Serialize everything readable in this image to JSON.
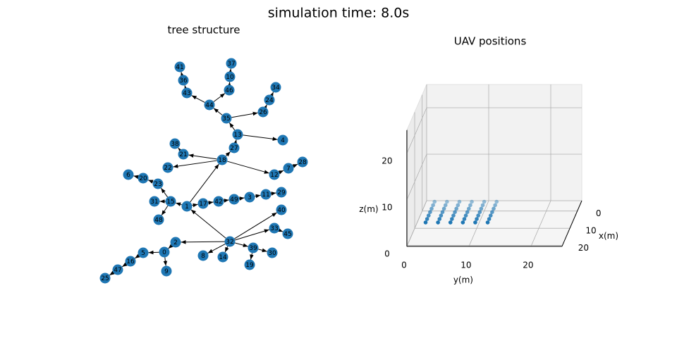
{
  "title": "simulation time: 8.0s",
  "tree": {
    "title": "tree structure",
    "nodes": [
      "0",
      "1",
      "2",
      "3",
      "4",
      "5",
      "6",
      "7",
      "8",
      "9",
      "10",
      "11",
      "12",
      "13",
      "14",
      "15",
      "16",
      "17",
      "18",
      "19",
      "20",
      "21",
      "22",
      "23",
      "24",
      "25",
      "26",
      "27",
      "28",
      "29",
      "30",
      "31",
      "32",
      "33",
      "34",
      "35",
      "36",
      "37",
      "38",
      "39",
      "40",
      "41",
      "42",
      "43",
      "44",
      "45",
      "46",
      "47",
      "48",
      "49"
    ],
    "edges": [
      [
        "32",
        "2"
      ],
      [
        "2",
        "0"
      ],
      [
        "0",
        "5"
      ],
      [
        "0",
        "9"
      ],
      [
        "5",
        "16"
      ],
      [
        "16",
        "47"
      ],
      [
        "47",
        "25"
      ],
      [
        "32",
        "8"
      ],
      [
        "32",
        "14"
      ],
      [
        "32",
        "39"
      ],
      [
        "39",
        "19"
      ],
      [
        "39",
        "30"
      ],
      [
        "32",
        "33"
      ],
      [
        "33",
        "45"
      ],
      [
        "32",
        "40"
      ],
      [
        "32",
        "1"
      ],
      [
        "1",
        "15"
      ],
      [
        "15",
        "31"
      ],
      [
        "15",
        "48"
      ],
      [
        "15",
        "23"
      ],
      [
        "23",
        "20"
      ],
      [
        "20",
        "6"
      ],
      [
        "1",
        "17"
      ],
      [
        "17",
        "42"
      ],
      [
        "42",
        "49"
      ],
      [
        "49",
        "3"
      ],
      [
        "3",
        "11"
      ],
      [
        "11",
        "29"
      ],
      [
        "1",
        "18"
      ],
      [
        "18",
        "21"
      ],
      [
        "21",
        "38"
      ],
      [
        "18",
        "22"
      ],
      [
        "18",
        "12"
      ],
      [
        "12",
        "7"
      ],
      [
        "7",
        "28"
      ],
      [
        "18",
        "27"
      ],
      [
        "27",
        "13"
      ],
      [
        "13",
        "4"
      ],
      [
        "13",
        "35"
      ],
      [
        "35",
        "44"
      ],
      [
        "44",
        "43"
      ],
      [
        "43",
        "36"
      ],
      [
        "36",
        "41"
      ],
      [
        "44",
        "46"
      ],
      [
        "46",
        "10"
      ],
      [
        "10",
        "37"
      ],
      [
        "35",
        "26"
      ],
      [
        "26",
        "24"
      ],
      [
        "24",
        "34"
      ]
    ],
    "color": "#1f77b4"
  },
  "chart_data": {
    "type": "scatter3d",
    "title": "UAV positions",
    "xlabel": "x(m)",
    "ylabel": "y(m)",
    "zlabel": "z(m)",
    "x": [
      0,
      0,
      0,
      0,
      0,
      0,
      2,
      2,
      2,
      2,
      2,
      2,
      4,
      4,
      4,
      4,
      4,
      4,
      6,
      6,
      6,
      6,
      6,
      6,
      8,
      8,
      8,
      8,
      8,
      8,
      10,
      10,
      10,
      10,
      10,
      10,
      12,
      12,
      12,
      12,
      12,
      12
    ],
    "y": [
      2,
      4,
      6,
      8,
      10,
      12,
      2,
      4,
      6,
      8,
      10,
      12,
      2,
      4,
      6,
      8,
      10,
      12,
      2,
      4,
      6,
      8,
      10,
      12,
      2,
      4,
      6,
      8,
      10,
      12,
      2,
      4,
      6,
      8,
      10,
      12,
      2,
      4,
      6,
      8,
      10,
      12
    ],
    "z": [
      2,
      2,
      2,
      2,
      2,
      2,
      2,
      2,
      2,
      2,
      2,
      2,
      2,
      2,
      2,
      2,
      2,
      2,
      2,
      2,
      2,
      2,
      2,
      2,
      2,
      2,
      2,
      2,
      2,
      2,
      2,
      2,
      2,
      2,
      2,
      2,
      2,
      2,
      2,
      2,
      2,
      2
    ],
    "color": "#1f77b4",
    "xlim": [
      -6,
      20.5
    ],
    "ylim": [
      0,
      25
    ],
    "zlim": [
      0,
      25
    ],
    "xticks": [
      0,
      10,
      20
    ],
    "yticks": [
      0,
      10,
      20
    ],
    "zticks": [
      0,
      10,
      20
    ],
    "grid": true
  }
}
